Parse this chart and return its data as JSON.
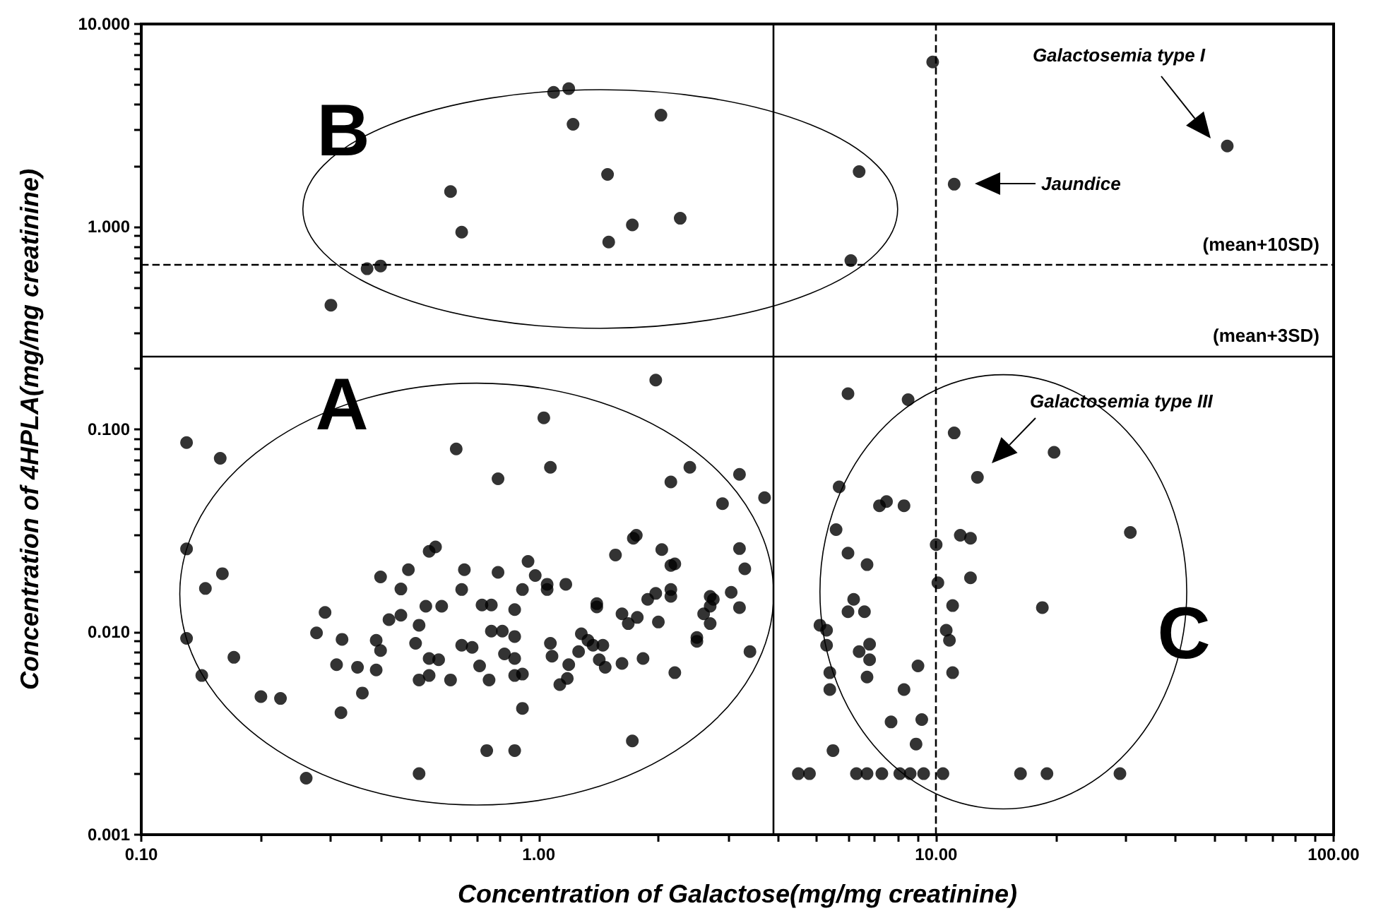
{
  "chart_data": {
    "type": "scatter",
    "xlabel": "Concentration of Galactose(mg/mg creatinine)",
    "ylabel": "Concentration of 4HPLA(mg/mg creatinine)",
    "log": "xy",
    "marker": "circle",
    "xlim": [
      0.1,
      100
    ],
    "ylim": [
      0.001,
      10
    ],
    "xticks": [
      {
        "value": 0.1,
        "label": "0.10"
      },
      {
        "value": 0.2,
        "label": null
      },
      {
        "value": 0.3,
        "label": null
      },
      {
        "value": 0.4,
        "label": null
      },
      {
        "value": 0.5,
        "label": null
      },
      {
        "value": 0.6,
        "label": null
      },
      {
        "value": 0.7,
        "label": null
      },
      {
        "value": 0.8,
        "label": null
      },
      {
        "value": 0.9,
        "label": null
      },
      {
        "value": 1,
        "label": "1.00"
      },
      {
        "value": 2,
        "label": null
      },
      {
        "value": 3,
        "label": null
      },
      {
        "value": 4,
        "label": null
      },
      {
        "value": 5,
        "label": null
      },
      {
        "value": 6,
        "label": null
      },
      {
        "value": 7,
        "label": null
      },
      {
        "value": 8,
        "label": null
      },
      {
        "value": 9,
        "label": null
      },
      {
        "value": 10,
        "label": "10.00"
      },
      {
        "value": 20,
        "label": null
      },
      {
        "value": 30,
        "label": null
      },
      {
        "value": 40,
        "label": null
      },
      {
        "value": 50,
        "label": null
      },
      {
        "value": 60,
        "label": null
      },
      {
        "value": 70,
        "label": null
      },
      {
        "value": 80,
        "label": null
      },
      {
        "value": 90,
        "label": null
      },
      {
        "value": 100,
        "label": "100.00"
      }
    ],
    "yticks": [
      {
        "value": 0.001,
        "label": "0.001"
      },
      {
        "value": 0.002,
        "label": null
      },
      {
        "value": 0.003,
        "label": null
      },
      {
        "value": 0.004,
        "label": null
      },
      {
        "value": 0.005,
        "label": null
      },
      {
        "value": 0.006,
        "label": null
      },
      {
        "value": 0.007,
        "label": null
      },
      {
        "value": 0.008,
        "label": null
      },
      {
        "value": 0.009,
        "label": null
      },
      {
        "value": 0.01,
        "label": "0.010"
      },
      {
        "value": 0.02,
        "label": null
      },
      {
        "value": 0.03,
        "label": null
      },
      {
        "value": 0.04,
        "label": null
      },
      {
        "value": 0.05,
        "label": null
      },
      {
        "value": 0.06,
        "label": null
      },
      {
        "value": 0.07,
        "label": null
      },
      {
        "value": 0.08,
        "label": null
      },
      {
        "value": 0.09,
        "label": null
      },
      {
        "value": 0.1,
        "label": "0.100"
      },
      {
        "value": 0.2,
        "label": null
      },
      {
        "value": 0.3,
        "label": null
      },
      {
        "value": 0.4,
        "label": null
      },
      {
        "value": 0.5,
        "label": null
      },
      {
        "value": 0.6,
        "label": null
      },
      {
        "value": 0.7,
        "label": null
      },
      {
        "value": 0.8,
        "label": null
      },
      {
        "value": 0.9,
        "label": null
      },
      {
        "value": 1,
        "label": "1.000"
      },
      {
        "value": 2,
        "label": null
      },
      {
        "value": 3,
        "label": null
      },
      {
        "value": 4,
        "label": null
      },
      {
        "value": 5,
        "label": null
      },
      {
        "value": 6,
        "label": null
      },
      {
        "value": 7,
        "label": null
      },
      {
        "value": 8,
        "label": null
      },
      {
        "value": 9,
        "label": null
      },
      {
        "value": 10,
        "label": "10.000"
      }
    ],
    "ref_lines": [
      {
        "axis": "y",
        "value": 0.65,
        "label": "(mean+10SD)",
        "line_style": "dashed"
      },
      {
        "axis": "y",
        "value": 0.23,
        "label": "(mean+3SD)",
        "line_style": "solid"
      },
      {
        "axis": "x",
        "value": 3.9,
        "line_style": "solid"
      },
      {
        "axis": "x",
        "value": 10,
        "line_style": "dashed"
      }
    ],
    "annotations": [
      "B",
      "A",
      "C",
      "Galactosemia type I",
      "Jaundice",
      "Galactosemia type III"
    ],
    "series": [
      {
        "color": "#000000",
        "x": [
          1.09,
          1.19,
          1.22,
          2.03,
          1.49,
          0.6,
          0.64,
          1.72,
          2.27,
          1.5,
          0.37,
          0.4,
          0.3,
          6.4,
          6.1,
          9.8,
          54,
          11.1,
          1.97,
          1.03,
          6.0,
          8.5,
          11.1,
          19.8,
          12.7,
          5.7,
          7.2,
          7.5,
          8.3,
          30.8,
          5.6,
          10,
          11.5,
          12.2,
          6.0,
          6.7,
          10.1,
          12.2,
          18.5,
          6.2,
          6.0,
          6.6,
          11,
          5.1,
          5.3,
          5.3,
          6.8,
          6.4,
          6.8,
          10.6,
          10.8,
          9.0,
          5.4,
          6.7,
          11,
          5.4,
          8.3,
          7.7,
          9.2,
          8.9,
          5.5,
          4.5,
          4.8,
          6.3,
          6.7,
          7.3,
          8.1,
          8.6,
          9.3,
          10.4,
          16.3,
          19.0,
          29,
          1.07,
          0.79,
          2.4,
          2.15,
          3.2,
          2.9,
          3.7,
          1.73,
          1.76,
          2.04,
          1.56,
          3.2,
          3.3,
          2.15,
          2.2,
          0.94,
          0.79,
          0.98,
          1.05,
          1.05,
          1.17,
          0.91,
          2.15,
          2.15,
          1.97,
          1.88,
          3.05,
          2.7,
          2.75,
          2.7,
          2.6,
          2.7,
          3.2,
          1.4,
          1.4,
          1.62,
          1.68,
          1.77,
          2.0,
          0.72,
          0.76,
          0.87,
          0.76,
          0.81,
          0.87,
          0.68,
          0.82,
          0.87,
          1.07,
          1.08,
          1.28,
          1.26,
          1.33,
          1.37,
          1.45,
          1.42,
          1.47,
          1.62,
          1.83,
          2.5,
          2.5,
          3.4,
          2.2,
          0.71,
          0.75,
          0.87,
          0.91,
          1.19,
          1.18,
          1.13,
          0.91,
          0.74,
          0.87,
          1.72,
          0.13,
          0.158,
          0.62,
          0.13,
          0.16,
          0.145,
          0.13,
          0.142,
          0.171,
          0.2,
          0.224,
          0.26,
          0.5,
          0.318,
          0.36,
          0.29,
          0.276,
          0.31,
          0.35,
          0.32,
          0.39,
          0.39,
          0.4,
          0.49,
          0.5,
          0.4,
          0.47,
          0.45,
          0.42,
          0.45,
          0.52,
          0.57,
          0.53,
          0.55,
          0.53,
          0.56,
          0.5,
          0.53,
          0.6,
          0.64,
          0.65,
          0.64
        ],
        "values": [
          4.6,
          4.8,
          3.2,
          3.55,
          1.81,
          1.49,
          0.94,
          1.02,
          1.1,
          0.84,
          0.62,
          0.64,
          0.41,
          1.87,
          0.68,
          6.5,
          2.5,
          1.62,
          0.175,
          0.114,
          0.15,
          0.14,
          0.096,
          0.077,
          0.058,
          0.052,
          0.042,
          0.044,
          0.042,
          0.031,
          0.032,
          0.027,
          0.03,
          0.029,
          0.0245,
          0.0215,
          0.0175,
          0.0185,
          0.0132,
          0.0145,
          0.0126,
          0.0126,
          0.0135,
          0.0108,
          0.0102,
          0.0086,
          0.0087,
          0.008,
          0.0073,
          0.0102,
          0.0091,
          0.0068,
          0.0063,
          0.006,
          0.0063,
          0.0052,
          0.0052,
          0.0036,
          0.0037,
          0.0028,
          0.0026,
          0.002,
          0.002,
          0.002,
          0.002,
          0.002,
          0.002,
          0.002,
          0.002,
          0.002,
          0.002,
          0.002,
          0.002,
          0.065,
          0.057,
          0.065,
          0.055,
          0.06,
          0.043,
          0.046,
          0.029,
          0.03,
          0.0255,
          0.024,
          0.0258,
          0.0205,
          0.0213,
          0.0217,
          0.0223,
          0.0197,
          0.019,
          0.0172,
          0.0162,
          0.0172,
          0.0162,
          0.0162,
          0.015,
          0.0155,
          0.0145,
          0.0157,
          0.015,
          0.0145,
          0.0134,
          0.0123,
          0.011,
          0.0132,
          0.0138,
          0.0133,
          0.0123,
          0.011,
          0.0118,
          0.0112,
          0.0136,
          0.0136,
          0.0129,
          0.0101,
          0.0101,
          0.0095,
          0.0084,
          0.0078,
          0.0074,
          0.0088,
          0.0076,
          0.0098,
          0.008,
          0.0091,
          0.0086,
          0.0086,
          0.0073,
          0.0067,
          0.007,
          0.0074,
          0.0094,
          0.009,
          0.008,
          0.0063,
          0.0068,
          0.0058,
          0.0061,
          0.0062,
          0.0069,
          0.0059,
          0.0055,
          0.0042,
          0.0026,
          0.0026,
          0.0029,
          0.086,
          0.072,
          0.08,
          0.0257,
          0.0194,
          0.0164,
          0.0093,
          0.0061,
          0.0075,
          0.0048,
          0.0047,
          0.0019,
          0.002,
          0.004,
          0.005,
          0.0125,
          0.0099,
          0.0069,
          0.0067,
          0.0092,
          0.0065,
          0.0091,
          0.0081,
          0.0088,
          0.0108,
          0.0187,
          0.0203,
          0.0163,
          0.0115,
          0.0121,
          0.0134,
          0.0134,
          0.025,
          0.0263,
          0.0074,
          0.0073,
          0.0058,
          0.0061,
          0.0058,
          0.0162,
          0.0203,
          0.0086
        ]
      }
    ]
  }
}
